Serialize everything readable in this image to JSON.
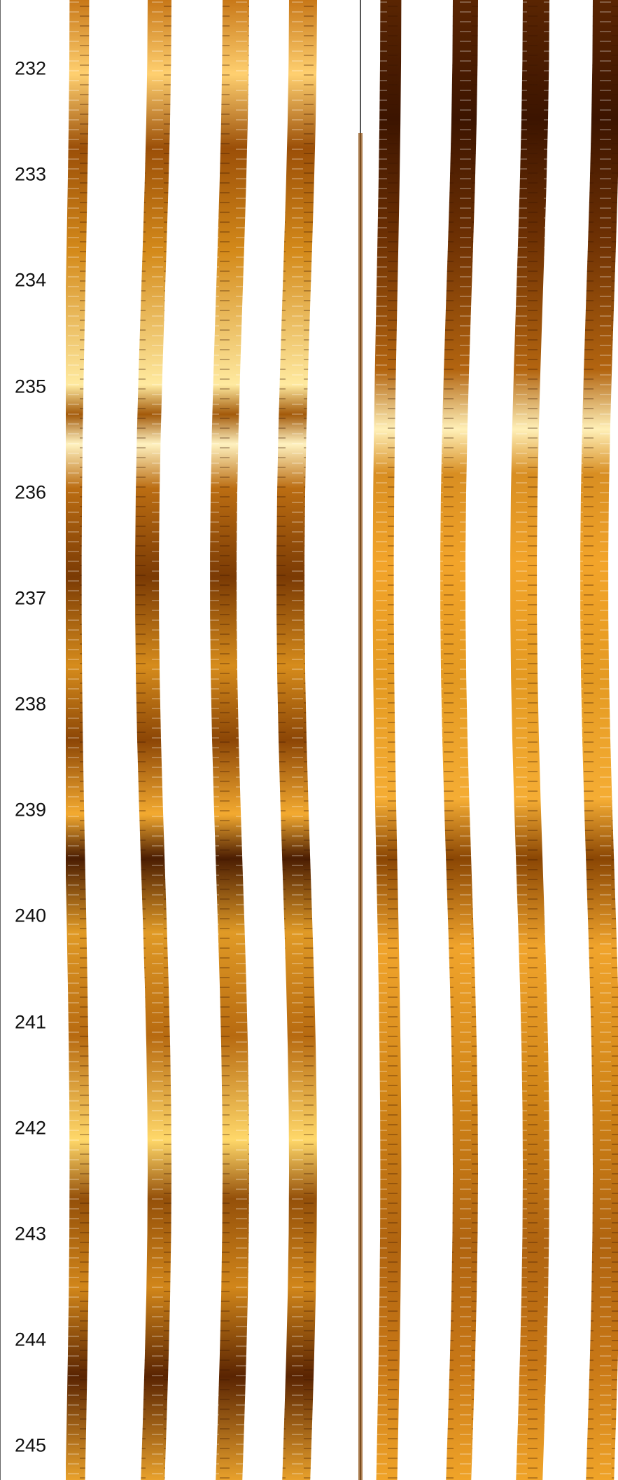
{
  "depth_scale": {
    "ticks": [
      "232",
      "233",
      "234",
      "235",
      "236",
      "237",
      "238",
      "239",
      "240",
      "241",
      "242",
      "243",
      "244",
      "245"
    ]
  },
  "image_log": {
    "palette": {
      "dark": "#3a1500",
      "mid_dark": "#8a4200",
      "mid": "#c97a10",
      "bright": "#f0a020",
      "highlight": "#fff0c0",
      "gap": "#ffffff"
    },
    "panels": [
      "left-image-panel",
      "right-image-panel"
    ],
    "pads_per_panel": 4
  }
}
